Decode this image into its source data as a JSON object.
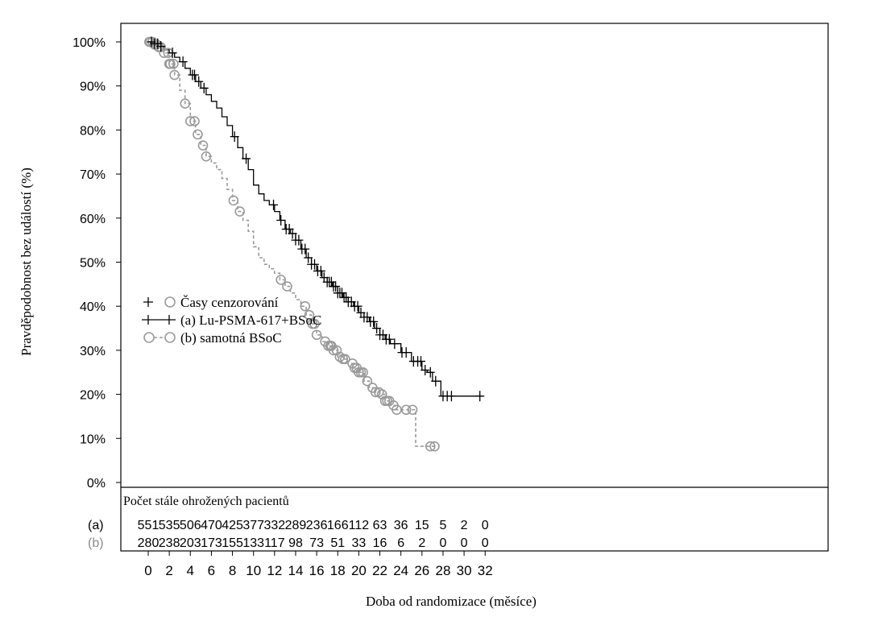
{
  "chart_data": {
    "type": "line",
    "subtype": "kaplan-meier",
    "title": "",
    "xlabel": "Doba od randomizace (měsíce)",
    "ylabel": "Pravděpodobnost bez událostí (%)",
    "xlim": [
      0,
      32
    ],
    "ylim": [
      0,
      100
    ],
    "x_ticks": [
      0,
      2,
      4,
      6,
      8,
      10,
      12,
      14,
      16,
      18,
      20,
      22,
      24,
      26,
      28,
      30,
      32
    ],
    "x_tick_labels": [
      "0",
      "2",
      "4",
      "6",
      "8",
      "10",
      "12",
      "14",
      "16",
      "18",
      "20",
      "22",
      "24",
      "26",
      "28",
      "30",
      "32"
    ],
    "y_ticks": [
      0,
      10,
      20,
      30,
      40,
      50,
      60,
      70,
      80,
      90,
      100
    ],
    "y_tick_labels": [
      "0%",
      "10%",
      "20%",
      "30%",
      "40%",
      "50%",
      "60%",
      "70%",
      "80%",
      "90%",
      "100%"
    ],
    "grid": false,
    "legend": {
      "placement": "middle-left",
      "censor_label": "Časy cenzorování",
      "entries": [
        "(a) Lu-PSMA-617+BSoC",
        "(b) samotná BSoC"
      ]
    },
    "colors": {
      "a": "#000000",
      "b": "#9a9a9a",
      "b_text": "#8c8c8c"
    },
    "series": [
      {
        "name": "(a) Lu-PSMA-617+BSoC",
        "style": "solid",
        "marker": "plus",
        "points": [
          [
            0,
            100
          ],
          [
            0.5,
            99.6
          ],
          [
            1,
            99
          ],
          [
            1.5,
            98.2
          ],
          [
            2,
            97.5
          ],
          [
            2.5,
            96.5
          ],
          [
            3,
            95.5
          ],
          [
            3.5,
            94
          ],
          [
            4,
            92.5
          ],
          [
            4.5,
            91
          ],
          [
            5,
            89.5
          ],
          [
            5.5,
            88
          ],
          [
            6,
            86.5
          ],
          [
            6.5,
            85
          ],
          [
            7,
            83
          ],
          [
            7.5,
            81
          ],
          [
            8,
            78.5
          ],
          [
            8.5,
            76
          ],
          [
            9,
            73.5
          ],
          [
            9.5,
            71
          ],
          [
            10,
            67.5
          ],
          [
            10.5,
            65.5
          ],
          [
            11,
            64
          ],
          [
            11.5,
            63
          ],
          [
            12,
            61.5
          ],
          [
            12.5,
            59.5
          ],
          [
            13,
            57.5
          ],
          [
            13.5,
            56.5
          ],
          [
            14,
            55
          ],
          [
            14.5,
            53
          ],
          [
            15,
            51
          ],
          [
            15.5,
            49.5
          ],
          [
            16,
            48
          ],
          [
            16.5,
            46.5
          ],
          [
            17,
            45.5
          ],
          [
            17.5,
            44.5
          ],
          [
            18,
            43
          ],
          [
            18.5,
            42
          ],
          [
            19,
            41
          ],
          [
            19.5,
            40
          ],
          [
            20,
            38.5
          ],
          [
            20.5,
            37.5
          ],
          [
            21,
            36.5
          ],
          [
            21.5,
            35
          ],
          [
            22,
            33.5
          ],
          [
            22.5,
            32.5
          ],
          [
            23,
            31.5
          ],
          [
            24,
            29.5
          ],
          [
            25,
            27.5
          ],
          [
            26,
            25.5
          ],
          [
            26.5,
            25
          ],
          [
            27,
            23
          ],
          [
            27.5,
            23
          ],
          [
            27.8,
            19.6
          ],
          [
            31.7,
            19.6
          ]
        ],
        "censor_x": [
          0.3,
          0.6,
          0.9,
          1.2,
          2.3,
          3.3,
          4.2,
          4.4,
          4.8,
          5.3,
          8.2,
          9.3,
          11.9,
          12.6,
          13.1,
          13.4,
          13.7,
          14.0,
          14.3,
          14.6,
          14.9,
          15.2,
          15.5,
          15.8,
          16.1,
          16.4,
          16.7,
          17.0,
          17.2,
          17.4,
          17.6,
          17.8,
          18.0,
          18.2,
          18.4,
          18.6,
          18.8,
          19.0,
          19.3,
          19.6,
          19.9,
          20.2,
          20.5,
          20.8,
          21.1,
          21.4,
          21.7,
          22.0,
          22.3,
          22.6,
          22.9,
          23.4,
          24.1,
          24.5,
          25.2,
          25.6,
          25.9,
          26.3,
          26.8,
          27.3,
          28.0,
          28.4,
          28.8,
          31.5
        ]
      },
      {
        "name": "(b) samotná BSoC",
        "style": "dashed",
        "marker": "circle",
        "points": [
          [
            0,
            100
          ],
          [
            0.5,
            99.4
          ],
          [
            1,
            98.8
          ],
          [
            1.5,
            97.5
          ],
          [
            2,
            95
          ],
          [
            2.5,
            92.5
          ],
          [
            3,
            89
          ],
          [
            3.5,
            86
          ],
          [
            4,
            82
          ],
          [
            4.5,
            79
          ],
          [
            5,
            76.5
          ],
          [
            5.5,
            74
          ],
          [
            6,
            72.5
          ],
          [
            6.5,
            71
          ],
          [
            7,
            69
          ],
          [
            7.5,
            66.5
          ],
          [
            8,
            64
          ],
          [
            8.5,
            61.5
          ],
          [
            9,
            59.5
          ],
          [
            9.5,
            57
          ],
          [
            10,
            53.5
          ],
          [
            10.5,
            51
          ],
          [
            11,
            49.5
          ],
          [
            11.5,
            48.5
          ],
          [
            12,
            47.5
          ],
          [
            12.5,
            46
          ],
          [
            13,
            44.5
          ],
          [
            13.5,
            43
          ],
          [
            14,
            41.5
          ],
          [
            14.5,
            40
          ],
          [
            15,
            38
          ],
          [
            15.5,
            36
          ],
          [
            16,
            33.5
          ],
          [
            16.5,
            32
          ],
          [
            17,
            31
          ],
          [
            17.5,
            30
          ],
          [
            18,
            28.5
          ],
          [
            18.5,
            28
          ],
          [
            19,
            27
          ],
          [
            19.5,
            26
          ],
          [
            20,
            25
          ],
          [
            20.5,
            23
          ],
          [
            21,
            21.5
          ],
          [
            21.5,
            20.5
          ],
          [
            22,
            20
          ],
          [
            22.5,
            18.5
          ],
          [
            23,
            17.5
          ],
          [
            23.5,
            16.5
          ],
          [
            25.3,
            16.5
          ],
          [
            25.4,
            8.2
          ],
          [
            27.2,
            8.2
          ]
        ],
        "censor_x": [
          0.1,
          0.2,
          0.4,
          0.6,
          0.8,
          1.0,
          1.2,
          1.5,
          1.9,
          2.0,
          2.1,
          2.4,
          2.5,
          3.5,
          4.0,
          4.4,
          4.7,
          5.2,
          5.5,
          8.1,
          8.7,
          12.6,
          13.2,
          14.9,
          15.3,
          15.6,
          15.8,
          16.0,
          16.8,
          17.1,
          17.3,
          17.4,
          17.6,
          17.9,
          18.2,
          18.5,
          18.7,
          19.4,
          19.6,
          19.8,
          20.0,
          20.2,
          20.4,
          20.8,
          21.3,
          21.6,
          21.9,
          22.2,
          22.5,
          22.7,
          22.9,
          23.3,
          23.6,
          24.5,
          25.1,
          26.8,
          27.2
        ]
      }
    ],
    "risk_table": {
      "title": "Počet stále ohrožených pacientů",
      "times": [
        0,
        2,
        4,
        6,
        8,
        10,
        12,
        14,
        16,
        18,
        20,
        22,
        24,
        26,
        28,
        30,
        32
      ],
      "rows": [
        {
          "label": "(a)",
          "values": [
            "551",
            "535",
            "506",
            "470",
            "425",
            "377",
            "332",
            "289",
            "236",
            "166",
            "112",
            "63",
            "36",
            "15",
            "5",
            "2",
            "0"
          ]
        },
        {
          "label": "(b)",
          "values": [
            "280",
            "238",
            "203",
            "173",
            "155",
            "133",
            "117",
            "98",
            "73",
            "51",
            "33",
            "16",
            "6",
            "2",
            "0",
            "0",
            "0"
          ]
        }
      ]
    }
  }
}
